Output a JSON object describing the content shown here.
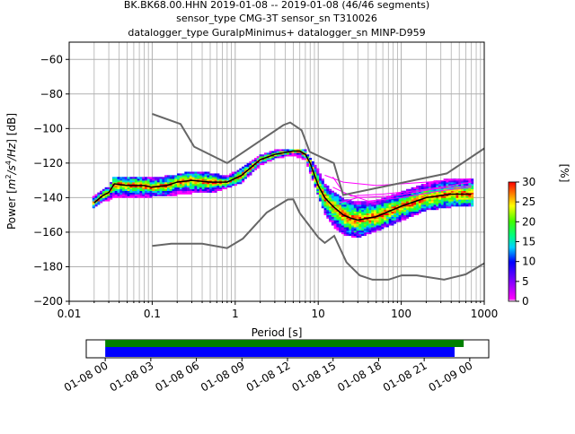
{
  "header": {
    "title_line1": "BK.BK68.00.HHN   2019-01-08 -- 2019-01-08  (46/46 segments)",
    "title_line2": "sensor_type CMG-3T sensor_sn T310026",
    "title_line3": "datalogger_type GuralpMinimus+ datalogger_sn MINP-D959"
  },
  "chart_data": [
    {
      "type": "heatmap",
      "title": "BK.BK68.00.HHN   2019-01-08 -- 2019-01-08  (46/46 segments)",
      "xlabel": "Period [s]",
      "ylabel": "Power [m²/s⁴/Hz] [dB]",
      "ylabel_prefix": "Power [",
      "ylabel_m": "m",
      "ylabel_2": "2",
      "ylabel_slash": "/s",
      "ylabel_4": "4",
      "ylabel_hz": "/Hz",
      "ylabel_suffix": "] [dB]",
      "x_scale": "log",
      "xlim": [
        0.01,
        1000
      ],
      "ylim": [
        -200,
        -50
      ],
      "x_ticks": [
        0.01,
        0.1,
        1,
        10,
        100,
        1000
      ],
      "x_tick_labels": [
        "0.01",
        "0.1",
        "1",
        "10",
        "100",
        "1000"
      ],
      "y_ticks": [
        -200,
        -180,
        -160,
        -140,
        -120,
        -100,
        -80,
        -60
      ],
      "y_tick_labels": [
        "−200",
        "−180",
        "−160",
        "−140",
        "−120",
        "−100",
        "−80",
        "−60"
      ],
      "grid": true,
      "colorbar": {
        "label": "[%]",
        "range": [
          0,
          30
        ],
        "ticks": [
          0,
          5,
          10,
          15,
          20,
          25,
          30
        ],
        "tick_labels": [
          "0",
          "5",
          "10",
          "15",
          "20",
          "25",
          "30"
        ]
      },
      "noise_model_high": {
        "period": [
          0.1,
          0.22,
          0.32,
          0.8,
          3.8,
          4.6,
          6.3,
          7.9,
          15.4,
          20.0,
          354.8,
          1000
        ],
        "power": [
          -91.5,
          -97.4,
          -110.5,
          -120.0,
          -98.0,
          -96.5,
          -101.0,
          -113.5,
          -120.0,
          -138.5,
          -126.0,
          -111.5
        ]
      },
      "noise_model_low": {
        "period": [
          0.1,
          0.17,
          0.4,
          0.8,
          1.24,
          2.4,
          4.3,
          5.0,
          6.0,
          10.0,
          12.0,
          15.6,
          21.9,
          31.6,
          45.0,
          70.0,
          101.0,
          154.0,
          328.0,
          600.0,
          1000
        ],
        "power": [
          -168.0,
          -166.7,
          -166.7,
          -169.2,
          -163.7,
          -148.6,
          -141.1,
          -141.0,
          -149.0,
          -163.0,
          -166.2,
          -162.1,
          -177.5,
          -185.0,
          -187.5,
          -187.5,
          -185.0,
          -185.0,
          -187.5,
          -184.4,
          -178.0
        ]
      },
      "mean_curve": {
        "period": [
          0.02,
          0.025,
          0.03,
          0.035,
          0.05,
          0.08,
          0.1,
          0.15,
          0.2,
          0.3,
          0.5,
          0.8,
          1.2,
          2.0,
          3.0,
          5.0,
          6.0,
          7.0,
          8.0,
          10.0,
          12.0,
          15.0,
          20.0,
          25.0,
          30.0,
          50.0,
          100.0,
          200.0,
          400.0,
          700.0
        ],
        "power": [
          -143,
          -139,
          -137,
          -132,
          -133,
          -133,
          -134,
          -133,
          -131,
          -130,
          -131,
          -131,
          -127,
          -118,
          -115,
          -113,
          -113,
          -115,
          -120,
          -133,
          -140,
          -145,
          -150,
          -152,
          -153,
          -151,
          -145,
          -140,
          -138,
          -138
        ]
      },
      "density_band": {
        "period": [
          0.019,
          0.025,
          0.03,
          0.035,
          0.05,
          0.1,
          0.2,
          0.3,
          0.5,
          0.8,
          1.2,
          2.0,
          3.0,
          5.0,
          7.0,
          10.0,
          12.0,
          15.0,
          20.0,
          30.0,
          50.0,
          100.0,
          200.0,
          400.0,
          700.0
        ],
        "upper": [
          -140,
          -136,
          -134,
          -128,
          -128,
          -129,
          -127,
          -125,
          -126,
          -128,
          -123,
          -116,
          -113,
          -112,
          -113,
          -124,
          -132,
          -137,
          -141,
          -143,
          -142,
          -137,
          -132,
          -129,
          -129
        ],
        "lower": [
          -146,
          -142,
          -141,
          -139,
          -140,
          -139,
          -138,
          -137,
          -137,
          -134,
          -131,
          -121,
          -117,
          -115,
          -118,
          -138,
          -149,
          -156,
          -161,
          -163,
          -159,
          -153,
          -147,
          -145,
          -145
        ]
      },
      "outlier_lines": [
        {
          "period": [
            15.0,
            20.0,
            40.0,
            100.0,
            300.0,
            700.0
          ],
          "power": [
            -128,
            -137,
            -142,
            -140,
            -136,
            -134
          ]
        },
        {
          "period": [
            15.0,
            25.0,
            60.0,
            150.0,
            400.0,
            700.0
          ],
          "power": [
            -134,
            -139,
            -138,
            -136,
            -133,
            -131
          ]
        },
        {
          "period": [
            12.0,
            20.0,
            50.0,
            200.0,
            700.0
          ],
          "power": [
            -127,
            -131,
            -133,
            -131,
            -129
          ]
        },
        {
          "period": [
            18.0,
            30.0,
            80.0,
            250.0,
            700.0
          ],
          "power": [
            -143,
            -140,
            -139,
            -135,
            -133
          ]
        }
      ]
    },
    {
      "type": "timeline",
      "x_tick_labels": [
        "01-08 00",
        "01-08 03",
        "01-08 06",
        "01-08 09",
        "01-08 12",
        "01-08 15",
        "01-08 18",
        "01-08 21",
        "01-09 00"
      ],
      "x_tick_hours": [
        0,
        3,
        6,
        9,
        12,
        15,
        18,
        21,
        24
      ],
      "xlim_hours": [
        -1.25,
        25.25
      ],
      "data_coverage": {
        "start_hour": 0,
        "end_hour": 23.6,
        "color": "#008000"
      },
      "psd_coverage": {
        "start_hour": 0,
        "end_hour": 23.0,
        "color": "#0000ff"
      }
    }
  ]
}
